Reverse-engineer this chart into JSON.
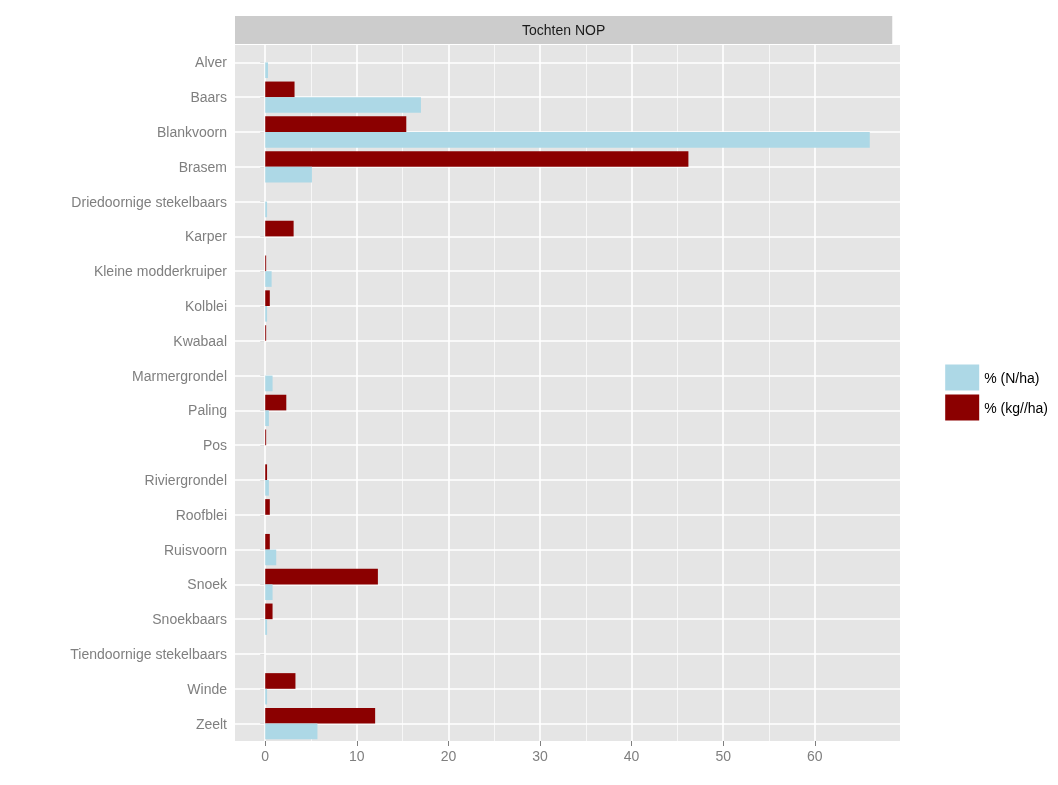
{
  "chart_data": {
    "type": "bar",
    "orientation": "horizontal",
    "title": "Tochten NOP",
    "categories": [
      "Alver",
      "Baars",
      "Blankvoorn",
      "Brasem",
      "Driedoornige stekelbaars",
      "Karper",
      "Kleine modderkruiper",
      "Kolblei",
      "Kwabaal",
      "Marmergrondel",
      "Paling",
      "Pos",
      "Riviergrondel",
      "Roofblei",
      "Ruisvoorn",
      "Snoek",
      "Snoekbaars",
      "Tiendoornige stekelbaars",
      "Winde",
      "Zeelt"
    ],
    "series": [
      {
        "name": "% (N/ha)",
        "color": "#add8e6",
        "values": [
          0.3,
          17,
          66,
          5.1,
          0.2,
          0,
          0.7,
          0.2,
          0,
          0.8,
          0.4,
          null,
          0.4,
          null,
          1.2,
          0.8,
          0.2,
          null,
          0.2,
          5.7
        ]
      },
      {
        "name": "% (kg//ha)",
        "color": "#8b0000",
        "values": [
          0,
          3.2,
          15.4,
          46.2,
          0,
          3.1,
          0.1,
          0.5,
          0.1,
          0,
          2.3,
          0.1,
          0.2,
          0.5,
          0.5,
          12.3,
          0.8,
          0,
          3.3,
          12.0
        ]
      }
    ],
    "xlim": [
      -3.3,
      69.3
    ],
    "xticks": [
      0,
      10,
      20,
      30,
      40,
      50,
      60
    ],
    "grid": true,
    "legend": "right"
  }
}
